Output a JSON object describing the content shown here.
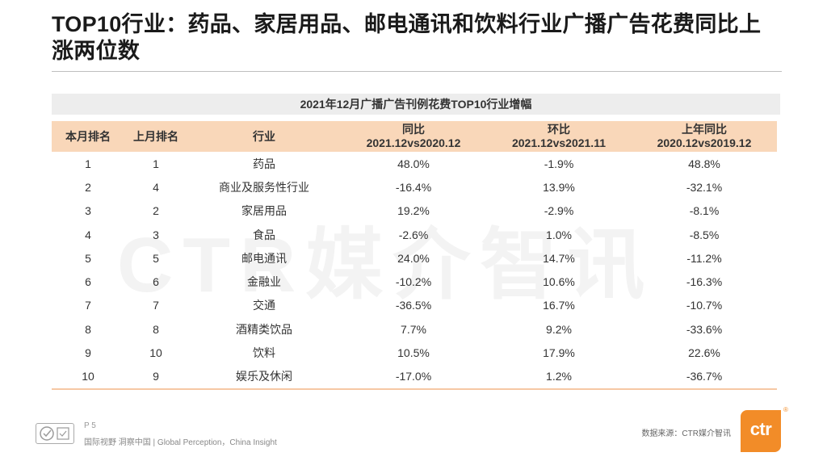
{
  "title": "TOP10行业：药品、家居用品、邮电通讯和饮料行业广播广告花费同比上涨两位数",
  "watermark": "CTR媒介智讯",
  "table": {
    "caption": "2021年12月广播广告刊例花费TOP10行业增幅",
    "headers": {
      "current_rank": "本月排名",
      "previous_rank": "上月排名",
      "industry": "行业",
      "yoy_line1": "同比",
      "yoy_line2": "2021.12vs2020.12",
      "mom_line1": "环比",
      "mom_line2": "2021.12vs2021.11",
      "last_year_line1": "上年同比",
      "last_year_line2": "2020.12vs2019.12"
    },
    "rows": [
      {
        "current_rank": "1",
        "previous_rank": "1",
        "industry": "药品",
        "yoy": "48.0%",
        "mom": "-1.9%",
        "last_year": "48.8%"
      },
      {
        "current_rank": "2",
        "previous_rank": "4",
        "industry": "商业及服务性行业",
        "yoy": "-16.4%",
        "mom": "13.9%",
        "last_year": "-32.1%"
      },
      {
        "current_rank": "3",
        "previous_rank": "2",
        "industry": "家居用品",
        "yoy": "19.2%",
        "mom": "-2.9%",
        "last_year": "-8.1%"
      },
      {
        "current_rank": "4",
        "previous_rank": "3",
        "industry": "食品",
        "yoy": "-2.6%",
        "mom": "1.0%",
        "last_year": "-8.5%"
      },
      {
        "current_rank": "5",
        "previous_rank": "5",
        "industry": "邮电通讯",
        "yoy": "24.0%",
        "mom": "14.7%",
        "last_year": "-11.2%"
      },
      {
        "current_rank": "6",
        "previous_rank": "6",
        "industry": "金融业",
        "yoy": "-10.2%",
        "mom": "10.6%",
        "last_year": "-16.3%"
      },
      {
        "current_rank": "7",
        "previous_rank": "7",
        "industry": "交通",
        "yoy": "-36.5%",
        "mom": "16.7%",
        "last_year": "-10.7%"
      },
      {
        "current_rank": "8",
        "previous_rank": "8",
        "industry": "酒精类饮品",
        "yoy": "7.7%",
        "mom": "9.2%",
        "last_year": "-33.6%"
      },
      {
        "current_rank": "9",
        "previous_rank": "10",
        "industry": "饮料",
        "yoy": "10.5%",
        "mom": "17.9%",
        "last_year": "22.6%"
      },
      {
        "current_rank": "10",
        "previous_rank": "9",
        "industry": "娱乐及休闲",
        "yoy": "-17.0%",
        "mom": "1.2%",
        "last_year": "-36.7%"
      }
    ]
  },
  "footer": {
    "page_number": "P 5",
    "slogan": "国际视野  洞察中国 | Global Perception，China Insight",
    "source": "数据来源：CTR媒介智讯",
    "logo_text": "ctr",
    "logo_mark": "®"
  },
  "colors": {
    "header_fill": "#f9d7b9",
    "caption_fill": "#ededed",
    "brand_orange": "#f28c28"
  }
}
